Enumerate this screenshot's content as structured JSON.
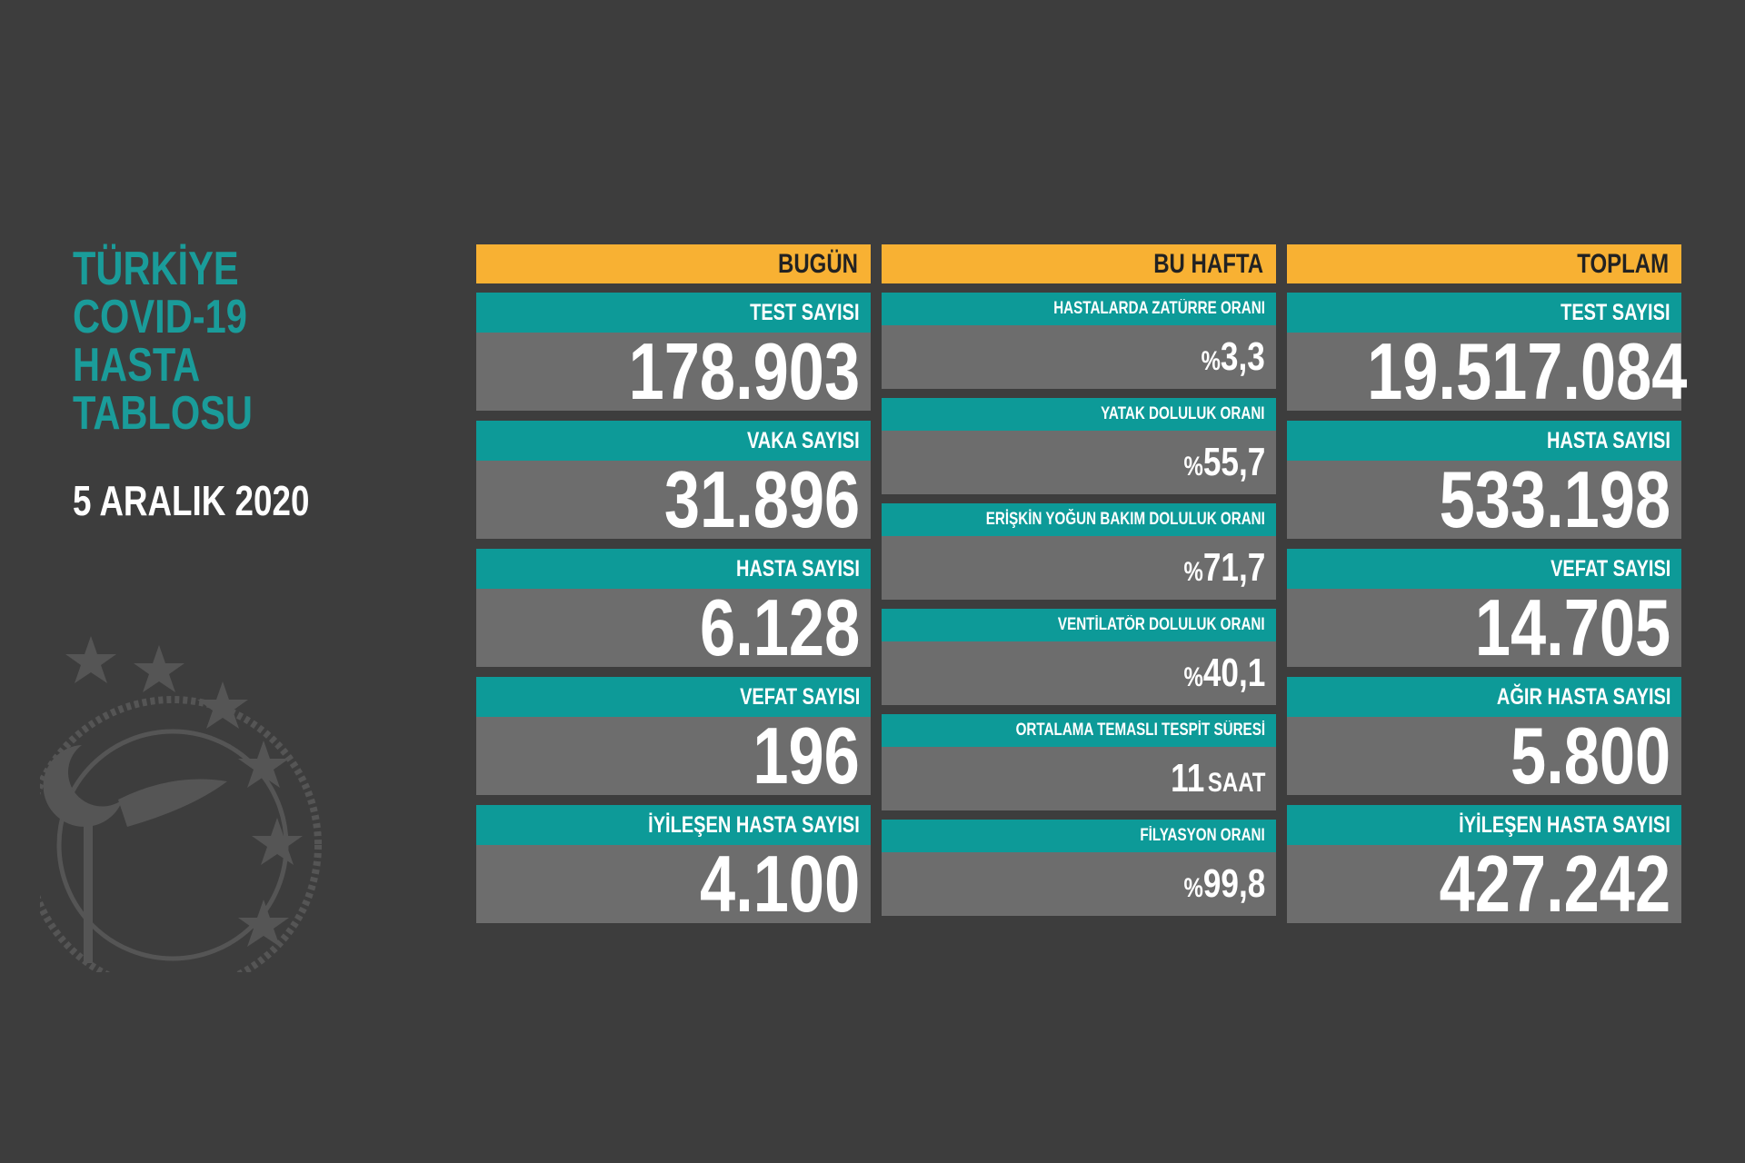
{
  "title": [
    "TÜRKİYE",
    "COVID-19",
    "HASTA",
    "TABLOSU"
  ],
  "date": "5 ARALIK 2020",
  "columns": [
    {
      "header": "BUGÜN",
      "items": [
        {
          "label": "TEST SAYISI",
          "value": "178.903"
        },
        {
          "label": "VAKA SAYISI",
          "value": "31.896"
        },
        {
          "label": "HASTA SAYISI",
          "value": "6.128"
        },
        {
          "label": "VEFAT SAYISI",
          "value": "196"
        },
        {
          "label": "İYİLEŞEN HASTA SAYISI",
          "value": "4.100"
        }
      ]
    },
    {
      "header": "BU HAFTA",
      "items": [
        {
          "label": "HASTALARDA ZATÜRRE ORANI",
          "prefix": "%",
          "value": "3,3"
        },
        {
          "label": "YATAK DOLULUK ORANI",
          "prefix": "%",
          "value": "55,7"
        },
        {
          "label": "ERİŞKİN YOĞUN BAKIM DOLULUK ORANI",
          "prefix": "%",
          "value": "71,7"
        },
        {
          "label": "VENTİLATÖR DOLULUK ORANI",
          "prefix": "%",
          "value": "40,1"
        },
        {
          "label": "ORTALAMA TEMASLI TESPİT SÜRESİ",
          "value": "11",
          "suffix": "SAAT"
        },
        {
          "label": "FİLYASYON ORANI",
          "prefix": "%",
          "value": "99,8"
        }
      ]
    },
    {
      "header": "TOPLAM",
      "items": [
        {
          "label": "TEST SAYISI",
          "value": "19.517.084"
        },
        {
          "label": "HASTA SAYISI",
          "value": "533.198"
        },
        {
          "label": "VEFAT SAYISI",
          "value": "14.705"
        },
        {
          "label": "AĞIR HASTA SAYISI",
          "value": "5.800"
        },
        {
          "label": "İYİLEŞEN HASTA SAYISI",
          "value": "427.242"
        }
      ]
    }
  ]
}
